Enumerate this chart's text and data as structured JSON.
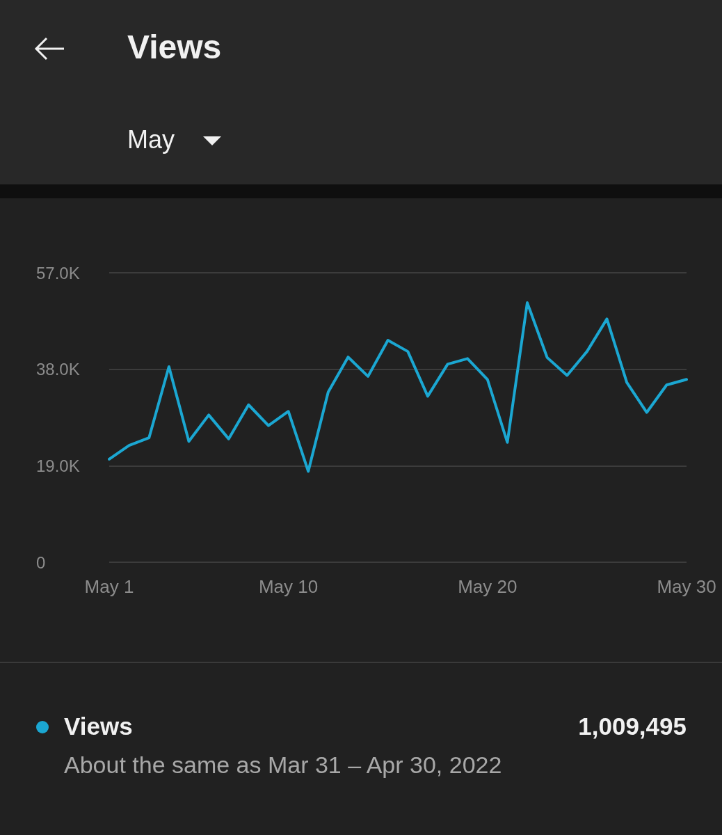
{
  "chart_data": {
    "type": "line",
    "title": "Views",
    "subtitle": "May",
    "categories": [
      "May 1",
      null,
      null,
      null,
      null,
      null,
      null,
      null,
      null,
      "May 10",
      null,
      null,
      null,
      null,
      null,
      null,
      null,
      null,
      null,
      "May 20",
      null,
      null,
      null,
      null,
      null,
      null,
      null,
      null,
      null,
      "May 30"
    ],
    "series": [
      {
        "name": "Views",
        "color": "#1ba7d2",
        "values": [
          20300,
          23000,
          24500,
          38500,
          23800,
          29000,
          24300,
          31000,
          26900,
          29700,
          17900,
          33500,
          40400,
          36600,
          43700,
          41500,
          32700,
          39000,
          40100,
          36000,
          23600,
          51100,
          40300,
          36800,
          41500,
          47900,
          35400,
          29500,
          34900,
          36000
        ]
      }
    ],
    "ylim": [
      0,
      57000
    ],
    "yticks": [
      {
        "value": 0,
        "label": "0"
      },
      {
        "value": 19000,
        "label": "19.0K"
      },
      {
        "value": 38000,
        "label": "38.0K"
      },
      {
        "value": 57000,
        "label": "57.0K"
      }
    ],
    "grid": "y",
    "legend": "bottom",
    "marker": "none",
    "line_style": "solid",
    "annotations": [
      "1,009,495",
      "About the same as Mar 31 – Apr 30, 2022"
    ]
  }
}
